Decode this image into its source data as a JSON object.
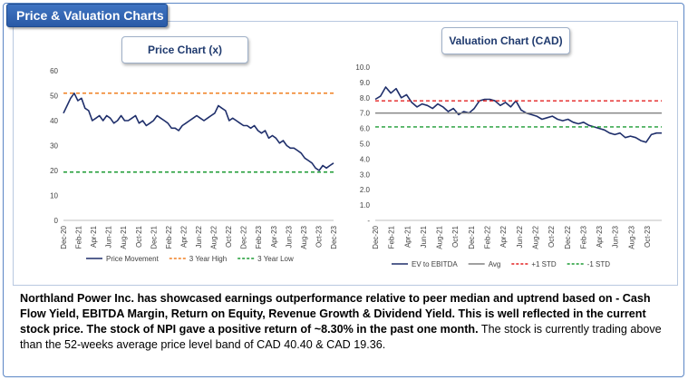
{
  "header": {
    "title": "Price & Valuation Charts"
  },
  "price_chart": {
    "title": "Price Chart (x)",
    "chart_data": {
      "type": "line",
      "title": "Price Chart (x)",
      "ylim": [
        0,
        60
      ],
      "yticks": [
        0,
        10,
        20,
        30,
        40,
        50,
        60
      ],
      "xticks": [
        "Dec-20",
        "Feb-21",
        "Apr-21",
        "Jun-21",
        "Aug-21",
        "Oct-21",
        "Dec-21",
        "Feb-22",
        "Apr-22",
        "Jun-22",
        "Aug-22",
        "Oct-22",
        "Dec-22",
        "Feb-23",
        "Apr-23",
        "Jun-23",
        "Aug-23",
        "Oct-23",
        "Dec-23"
      ],
      "series": [
        {
          "name": "Price Movement",
          "color": "#1f2f6b",
          "style": "solid",
          "values": [
            43,
            46,
            49,
            51,
            48,
            49,
            45,
            44,
            40,
            41,
            42,
            40,
            42,
            41,
            39,
            40,
            42,
            40,
            40,
            41,
            42,
            39,
            40,
            38,
            39,
            40,
            42,
            41,
            40,
            39,
            37,
            37,
            36,
            38,
            39,
            40,
            41,
            42,
            41,
            40,
            41,
            42,
            43,
            46,
            45,
            44,
            40,
            41,
            40,
            39,
            38,
            38,
            37,
            38,
            36,
            35,
            36,
            33,
            34,
            33,
            31,
            32,
            30,
            29,
            29,
            28,
            27,
            25,
            24,
            23,
            21,
            20,
            22,
            21,
            22,
            23
          ]
        },
        {
          "name": "3 Year High",
          "color": "#f07f20",
          "style": "dashed",
          "constant": 51
        },
        {
          "name": "3 Year Low",
          "color": "#1c9b33",
          "style": "dashed",
          "constant": 19.36
        }
      ]
    }
  },
  "valuation_chart": {
    "title": "Valuation Chart (CAD)",
    "chart_data": {
      "type": "line",
      "title": "Valuation Chart (CAD)",
      "ylim": [
        0,
        10
      ],
      "yticks": [
        "-",
        "1.0",
        "2.0",
        "3.0",
        "4.0",
        "5.0",
        "6.0",
        "7.0",
        "8.0",
        "9.0",
        "10.0"
      ],
      "xticks": [
        "Dec-20",
        "Feb-21",
        "Apr-21",
        "Jun-21",
        "Aug-21",
        "Oct-21",
        "Dec-21",
        "Feb-22",
        "Apr-22",
        "Jun-22",
        "Aug-22",
        "Oct-22",
        "Dec-22",
        "Feb-23",
        "Apr-23",
        "Jun-23",
        "Aug-23",
        "Oct-23"
      ],
      "series": [
        {
          "name": "EV to EBITDA",
          "color": "#1f2f6b",
          "style": "solid",
          "values": [
            7.9,
            8.1,
            8.7,
            8.3,
            8.6,
            8.0,
            8.2,
            7.7,
            7.4,
            7.6,
            7.5,
            7.3,
            7.6,
            7.4,
            7.1,
            7.3,
            6.9,
            7.1,
            7.0,
            7.3,
            7.8,
            7.9,
            7.9,
            7.8,
            7.5,
            7.7,
            7.4,
            7.8,
            7.2,
            7.0,
            6.9,
            6.8,
            6.6,
            6.7,
            6.8,
            6.6,
            6.5,
            6.6,
            6.4,
            6.3,
            6.4,
            6.2,
            6.1,
            6.0,
            5.9,
            5.7,
            5.6,
            5.7,
            5.4,
            5.5,
            5.4,
            5.2,
            5.1,
            5.6,
            5.7,
            5.7
          ]
        },
        {
          "name": "Avg",
          "color": "#808080",
          "style": "solid",
          "constant": 7.0
        },
        {
          "name": "+1 STD",
          "color": "#e32020",
          "style": "dashed",
          "constant": 7.8
        },
        {
          "name": "-1 STD",
          "color": "#1c9b33",
          "style": "dashed",
          "constant": 6.1
        }
      ]
    }
  },
  "summary": {
    "bold_text": "Northland Power Inc. has showcased earnings outperformance relative to peer median and uptrend based on - Cash Flow Yield, EBITDA Margin, Return on Equity, Revenue Growth & Dividend Yield. This is well reflected in the current stock price. The stock of NPI gave a positive return of ~8.30% in the past one month.",
    "normal_text": " The stock is currently trading  above than the 52-weeks average price level band of CAD 40.40 & CAD 19.36."
  }
}
